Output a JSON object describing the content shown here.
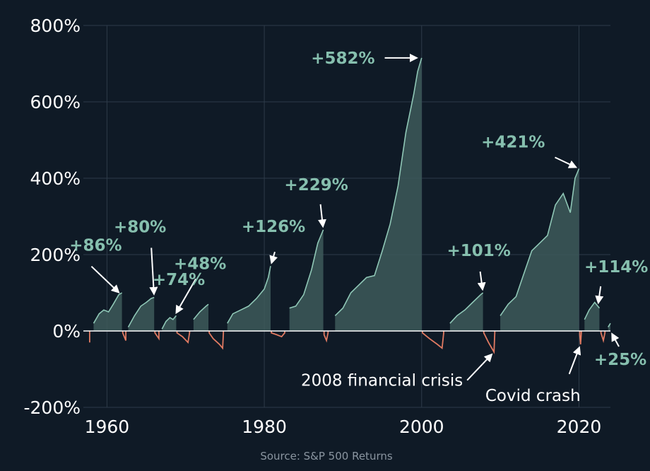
{
  "chart_data": {
    "type": "area",
    "title": "",
    "xlabel": "",
    "ylabel": "",
    "ylim": [
      -200,
      800
    ],
    "xlim": [
      1957,
      2024
    ],
    "yticks": [
      -200,
      0,
      200,
      400,
      600,
      800
    ],
    "ytick_labels": [
      "-200%",
      "0%",
      "200%",
      "400%",
      "600%",
      "800%"
    ],
    "xticks": [
      1960,
      1980,
      2000,
      2020
    ],
    "xtick_labels": [
      "1960",
      "1980",
      "2000",
      "2020"
    ],
    "grid": true,
    "colors": {
      "positive_fill": "#3d5a5a",
      "positive_line": "#8fc7b6",
      "negative_line": "#e07a62",
      "zero_line": "#ffffff",
      "background": "#0f1a26",
      "annotation_green": "#86bfae"
    },
    "series": [
      {
        "values": [
          [
            1957.0,
            0
          ],
          [
            1957.8,
            -30
          ],
          [
            1958.3,
            20
          ],
          [
            1959.0,
            45
          ],
          [
            1959.6,
            55
          ],
          [
            1960.2,
            50
          ],
          [
            1960.8,
            70
          ],
          [
            1961.5,
            95
          ],
          [
            1961.9,
            100
          ],
          [
            1962.0,
            -5
          ],
          [
            1962.4,
            -25
          ],
          [
            1962.7,
            10
          ],
          [
            1963.5,
            40
          ],
          [
            1964.3,
            65
          ],
          [
            1965.0,
            75
          ],
          [
            1965.6,
            85
          ],
          [
            1966.0,
            88
          ],
          [
            1966.1,
            -5
          ],
          [
            1966.6,
            -20
          ],
          [
            1967.0,
            5
          ],
          [
            1967.5,
            25
          ],
          [
            1968.0,
            35
          ],
          [
            1968.4,
            30
          ],
          [
            1968.8,
            40
          ],
          [
            1968.9,
            -5
          ],
          [
            1969.6,
            -15
          ],
          [
            1970.3,
            -30
          ],
          [
            1970.5,
            -5
          ],
          [
            1971.0,
            30
          ],
          [
            1971.8,
            50
          ],
          [
            1972.6,
            65
          ],
          [
            1972.9,
            70
          ],
          [
            1973.0,
            -5
          ],
          [
            1973.5,
            -20
          ],
          [
            1974.3,
            -35
          ],
          [
            1974.7,
            -45
          ],
          [
            1974.8,
            -5
          ],
          [
            1975.3,
            20
          ],
          [
            1976.0,
            45
          ],
          [
            1977.0,
            55
          ],
          [
            1978.0,
            65
          ],
          [
            1979.0,
            85
          ],
          [
            1980.0,
            110
          ],
          [
            1980.5,
            140
          ],
          [
            1980.8,
            170
          ],
          [
            1980.9,
            -5
          ],
          [
            1981.6,
            -10
          ],
          [
            1982.2,
            -15
          ],
          [
            1982.6,
            -5
          ],
          [
            1983.2,
            60
          ],
          [
            1984.0,
            65
          ],
          [
            1985.0,
            95
          ],
          [
            1986.0,
            160
          ],
          [
            1986.8,
            230
          ],
          [
            1987.5,
            265
          ],
          [
            1987.6,
            -10
          ],
          [
            1987.9,
            -25
          ],
          [
            1988.1,
            -5
          ],
          [
            1989.0,
            40
          ],
          [
            1990.0,
            60
          ],
          [
            1991.0,
            100
          ],
          [
            1992.0,
            120
          ],
          [
            1993.0,
            140
          ],
          [
            1994.0,
            145
          ],
          [
            1995.0,
            210
          ],
          [
            1996.0,
            280
          ],
          [
            1997.0,
            380
          ],
          [
            1998.0,
            520
          ],
          [
            1999.0,
            620
          ],
          [
            1999.5,
            680
          ],
          [
            2000.0,
            715
          ],
          [
            2000.1,
            -5
          ],
          [
            2001.0,
            -20
          ],
          [
            2002.0,
            -35
          ],
          [
            2002.6,
            -45
          ],
          [
            2002.8,
            -5
          ],
          [
            2003.6,
            20
          ],
          [
            2004.5,
            40
          ],
          [
            2005.5,
            55
          ],
          [
            2006.5,
            75
          ],
          [
            2007.5,
            95
          ],
          [
            2007.8,
            100
          ],
          [
            2007.9,
            -5
          ],
          [
            2008.5,
            -30
          ],
          [
            2009.2,
            -55
          ],
          [
            2009.3,
            -5
          ],
          [
            2010.0,
            40
          ],
          [
            2011.0,
            70
          ],
          [
            2012.0,
            90
          ],
          [
            2013.0,
            150
          ],
          [
            2014.0,
            210
          ],
          [
            2015.0,
            230
          ],
          [
            2016.0,
            250
          ],
          [
            2017.0,
            330
          ],
          [
            2018.0,
            360
          ],
          [
            2018.9,
            310
          ],
          [
            2019.5,
            400
          ],
          [
            2020.0,
            425
          ],
          [
            2020.1,
            -10
          ],
          [
            2020.2,
            -35
          ],
          [
            2020.3,
            -5
          ],
          [
            2020.7,
            30
          ],
          [
            2021.3,
            55
          ],
          [
            2022.0,
            75
          ],
          [
            2022.6,
            60
          ],
          [
            2022.8,
            -5
          ],
          [
            2023.1,
            -25
          ],
          [
            2023.3,
            -5
          ],
          [
            2023.7,
            10
          ],
          [
            2024.0,
            20
          ]
        ]
      }
    ],
    "annotations": [
      {
        "text": "+86%",
        "x": 1961.8,
        "y": 95,
        "style": "green"
      },
      {
        "text": "+80%",
        "x": 1966.0,
        "y": 88,
        "style": "green"
      },
      {
        "text": "+48%",
        "x": 1968.6,
        "y": 40,
        "style": "green"
      },
      {
        "text": "+74%",
        "x": 1972.9,
        "y": 70,
        "style": "green"
      },
      {
        "text": "+126%",
        "x": 1980.8,
        "y": 170,
        "style": "green"
      },
      {
        "text": "+229%",
        "x": 1987.5,
        "y": 265,
        "style": "green"
      },
      {
        "text": "+582%",
        "x": 1999.8,
        "y": 715,
        "style": "green"
      },
      {
        "text": "+101%",
        "x": 2007.8,
        "y": 100,
        "style": "green"
      },
      {
        "text": "+421%",
        "x": 2020.0,
        "y": 425,
        "style": "green"
      },
      {
        "text": "+114%",
        "x": 2022.4,
        "y": 65,
        "style": "green"
      },
      {
        "text": "+25%",
        "x": 2024.0,
        "y": 0,
        "style": "green"
      },
      {
        "text": "2008 financial crisis",
        "x": 2009.2,
        "y": -55,
        "style": "white"
      },
      {
        "text": "Covid crash",
        "x": 2020.2,
        "y": -35,
        "style": "white"
      }
    ]
  },
  "source": "Source: S&P 500 Returns"
}
